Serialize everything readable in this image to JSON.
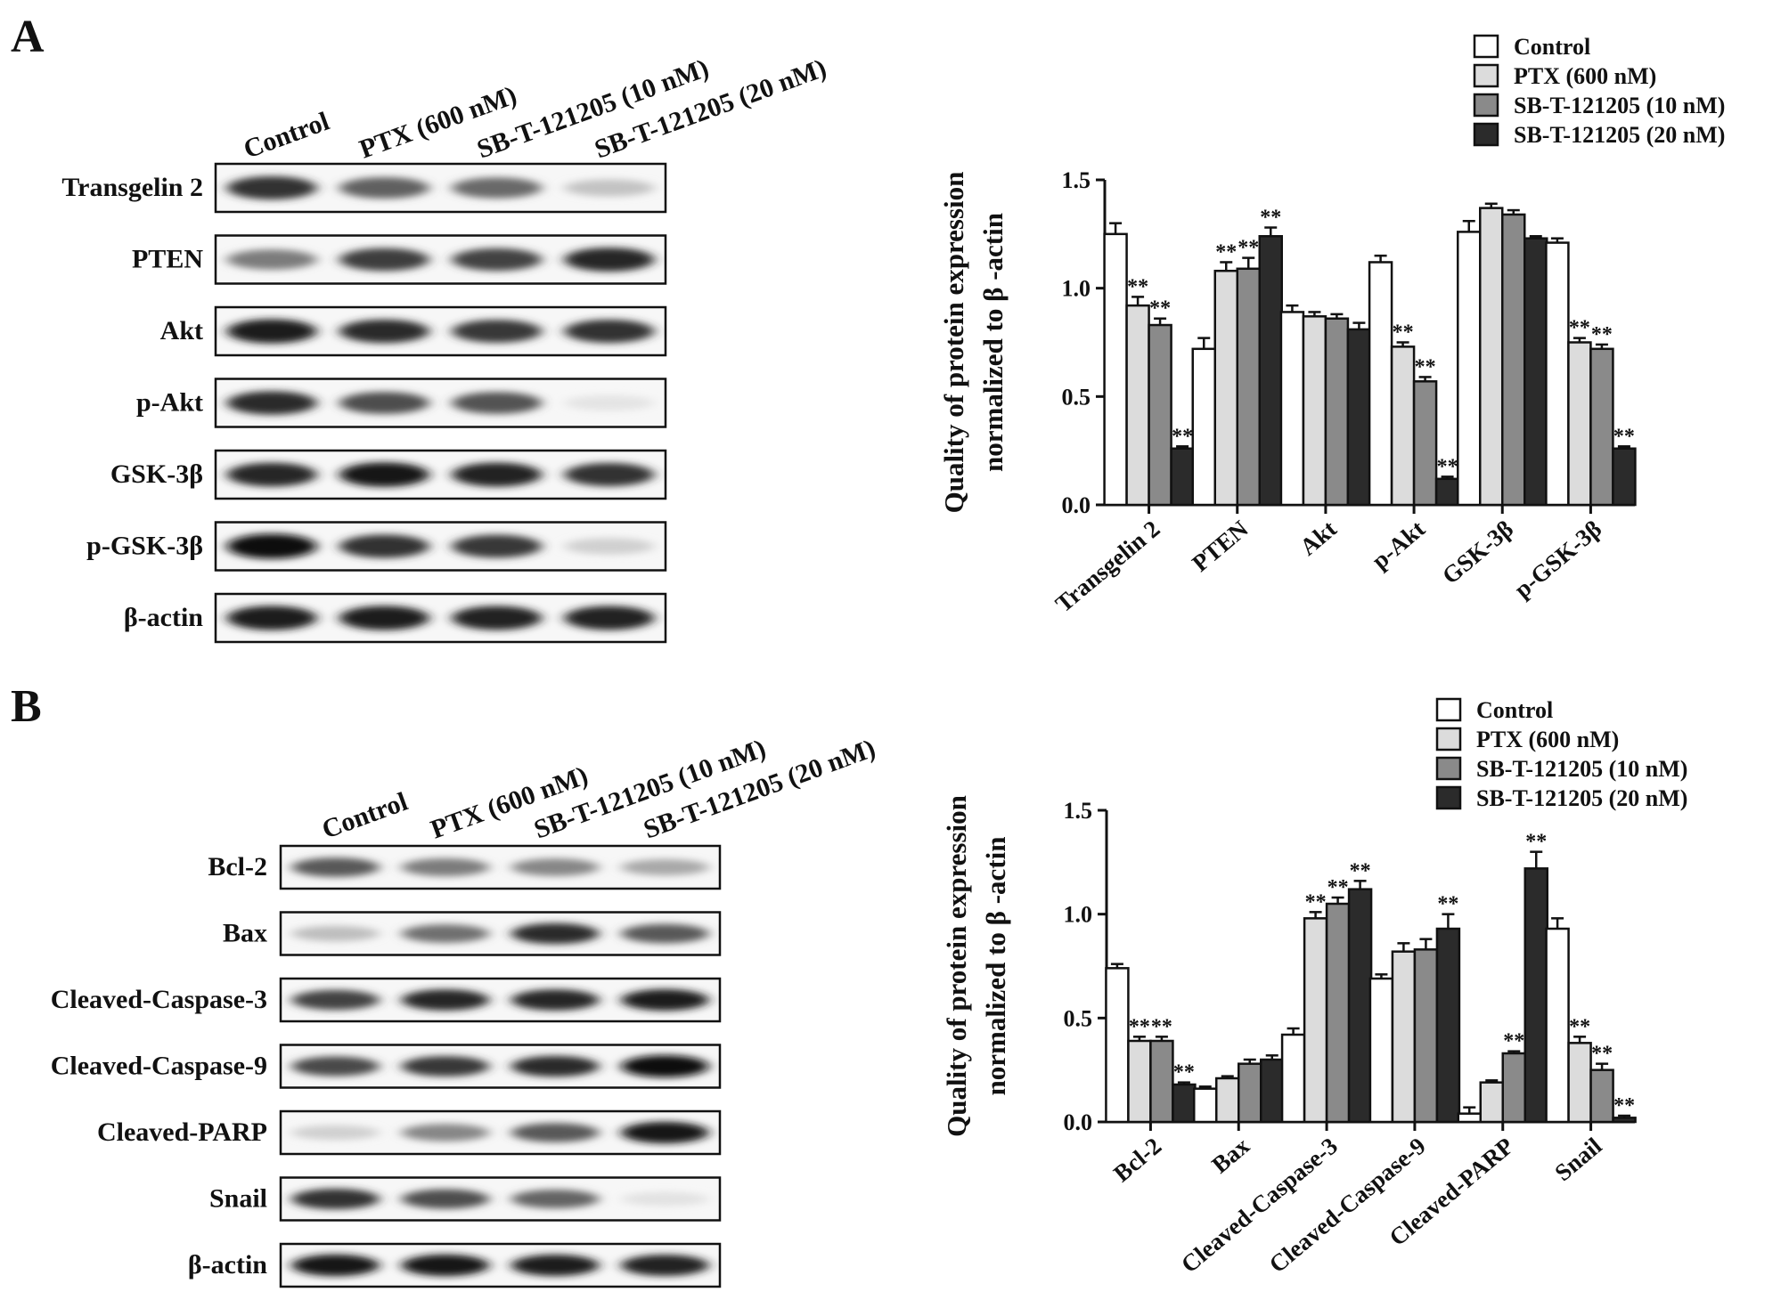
{
  "panels": [
    {
      "label": "A",
      "blot": {
        "lanes": [
          "Control",
          "PTX (600 nM)",
          "SB-T-121205 (10 nM)",
          "SB-T-121205 (20 nM)"
        ],
        "rows": [
          {
            "name": "Transgelin 2",
            "intensities": [
              0.82,
              0.62,
              0.58,
              0.18
            ]
          },
          {
            "name": "PTEN",
            "intensities": [
              0.5,
              0.78,
              0.75,
              0.88
            ]
          },
          {
            "name": "Akt",
            "intensities": [
              0.92,
              0.86,
              0.8,
              0.82
            ]
          },
          {
            "name": "p-Akt",
            "intensities": [
              0.85,
              0.7,
              0.68,
              0.03
            ]
          },
          {
            "name": "GSK-3β",
            "intensities": [
              0.88,
              0.95,
              0.9,
              0.82
            ]
          },
          {
            "name": "p-GSK-3β",
            "intensities": [
              1.0,
              0.82,
              0.8,
              0.12
            ]
          },
          {
            "name": "β-actin",
            "intensities": [
              0.92,
              0.92,
              0.9,
              0.9
            ]
          }
        ]
      }
    },
    {
      "label": "B",
      "blot": {
        "lanes": [
          "Control",
          "PTX (600 nM)",
          "SB-T-121205 (10 nM)",
          "SB-T-121205 (20 nM)"
        ],
        "rows": [
          {
            "name": "Bcl-2",
            "intensities": [
              0.65,
              0.5,
              0.45,
              0.3
            ]
          },
          {
            "name": "Bax",
            "intensities": [
              0.2,
              0.55,
              0.85,
              0.65
            ]
          },
          {
            "name": "Cleaved-Caspase-3",
            "intensities": [
              0.75,
              0.88,
              0.88,
              0.92
            ]
          },
          {
            "name": "Cleaved-Caspase-9",
            "intensities": [
              0.72,
              0.8,
              0.85,
              1.0
            ]
          },
          {
            "name": "Cleaved-PARP",
            "intensities": [
              0.12,
              0.45,
              0.65,
              0.95
            ]
          },
          {
            "name": "Snail",
            "intensities": [
              0.82,
              0.7,
              0.6,
              0.04
            ]
          },
          {
            "name": "β-actin",
            "intensities": [
              0.95,
              0.95,
              0.92,
              0.9
            ]
          }
        ]
      }
    }
  ],
  "series_colors": [
    "#ffffff",
    "#dcdcdc",
    "#8a8a8a",
    "#2b2b2b"
  ],
  "chart_data": [
    {
      "type": "bar",
      "title": "",
      "xlabel": "",
      "ylabel": "Quality of protein expression normalized to β -actin",
      "ylabel_lines": [
        "Quality of protein expression",
        "normalized to β -actin"
      ],
      "ylim": [
        0,
        1.5
      ],
      "yticks": [
        "0.0",
        "0.5",
        "1.0",
        "1.5"
      ],
      "legend_position": "top-right",
      "categories": [
        "Transgelin 2",
        "PTEN",
        "Akt",
        "p-Akt",
        "GSK-3β",
        "p-GSK-3β"
      ],
      "series": [
        {
          "name": "Control",
          "values": [
            1.25,
            0.72,
            0.89,
            1.12,
            1.26,
            1.21
          ],
          "errors": [
            0.05,
            0.05,
            0.03,
            0.03,
            0.05,
            0.02
          ],
          "marks": [
            "",
            "",
            "",
            "",
            "",
            ""
          ]
        },
        {
          "name": "PTX (600 nM)",
          "values": [
            0.92,
            1.08,
            0.87,
            0.73,
            1.37,
            0.75
          ],
          "errors": [
            0.04,
            0.04,
            0.02,
            0.02,
            0.02,
            0.02
          ],
          "marks": [
            "**",
            "**",
            "",
            "**",
            "",
            "**"
          ]
        },
        {
          "name": "SB-T-121205 (10 nM)",
          "values": [
            0.83,
            1.09,
            0.86,
            0.57,
            1.34,
            0.72
          ],
          "errors": [
            0.03,
            0.05,
            0.02,
            0.02,
            0.02,
            0.02
          ],
          "marks": [
            "**",
            "**",
            "",
            "**",
            "",
            "**"
          ]
        },
        {
          "name": "SB-T-121205 (20 nM)",
          "values": [
            0.26,
            1.24,
            0.81,
            0.12,
            1.23,
            0.26
          ],
          "errors": [
            0.01,
            0.04,
            0.03,
            0.01,
            0.01,
            0.01
          ],
          "marks": [
            "**",
            "**",
            "",
            "**",
            "",
            "**"
          ]
        }
      ]
    },
    {
      "type": "bar",
      "title": "",
      "xlabel": "",
      "ylabel": "Quality of protein expression normalized to β -actin",
      "ylabel_lines": [
        "Quality of protein expression",
        "normalized to β -actin"
      ],
      "ylim": [
        0,
        1.5
      ],
      "yticks": [
        "0.0",
        "0.5",
        "1.0",
        "1.5"
      ],
      "legend_position": "top-right",
      "categories": [
        "Bcl-2",
        "Bax",
        "Cleaved-Caspase-3",
        "Cleaved-Caspase-9",
        "Cleaved-PARP",
        "Snail"
      ],
      "series": [
        {
          "name": "Control",
          "values": [
            0.74,
            0.16,
            0.42,
            0.69,
            0.04,
            0.93
          ],
          "errors": [
            0.02,
            0.01,
            0.03,
            0.02,
            0.03,
            0.05
          ],
          "marks": [
            "",
            "",
            "",
            "",
            "",
            ""
          ]
        },
        {
          "name": "PTX (600 nM)",
          "values": [
            0.39,
            0.21,
            0.98,
            0.82,
            0.19,
            0.38
          ],
          "errors": [
            0.02,
            0.01,
            0.03,
            0.04,
            0.01,
            0.03
          ],
          "marks": [
            "**",
            "",
            "**",
            "",
            "",
            "**"
          ]
        },
        {
          "name": "SB-T-121205 (10 nM)",
          "values": [
            0.39,
            0.28,
            1.05,
            0.83,
            0.33,
            0.25
          ],
          "errors": [
            0.02,
            0.02,
            0.03,
            0.05,
            0.01,
            0.03
          ],
          "marks": [
            "**",
            "",
            "**",
            "",
            "**",
            "**"
          ]
        },
        {
          "name": "SB-T-121205 (20 nM)",
          "values": [
            0.18,
            0.3,
            1.12,
            0.93,
            1.22,
            0.02
          ],
          "errors": [
            0.01,
            0.02,
            0.04,
            0.07,
            0.08,
            0.01
          ],
          "marks": [
            "**",
            "",
            "**",
            "**",
            "**",
            "**"
          ]
        }
      ]
    }
  ]
}
